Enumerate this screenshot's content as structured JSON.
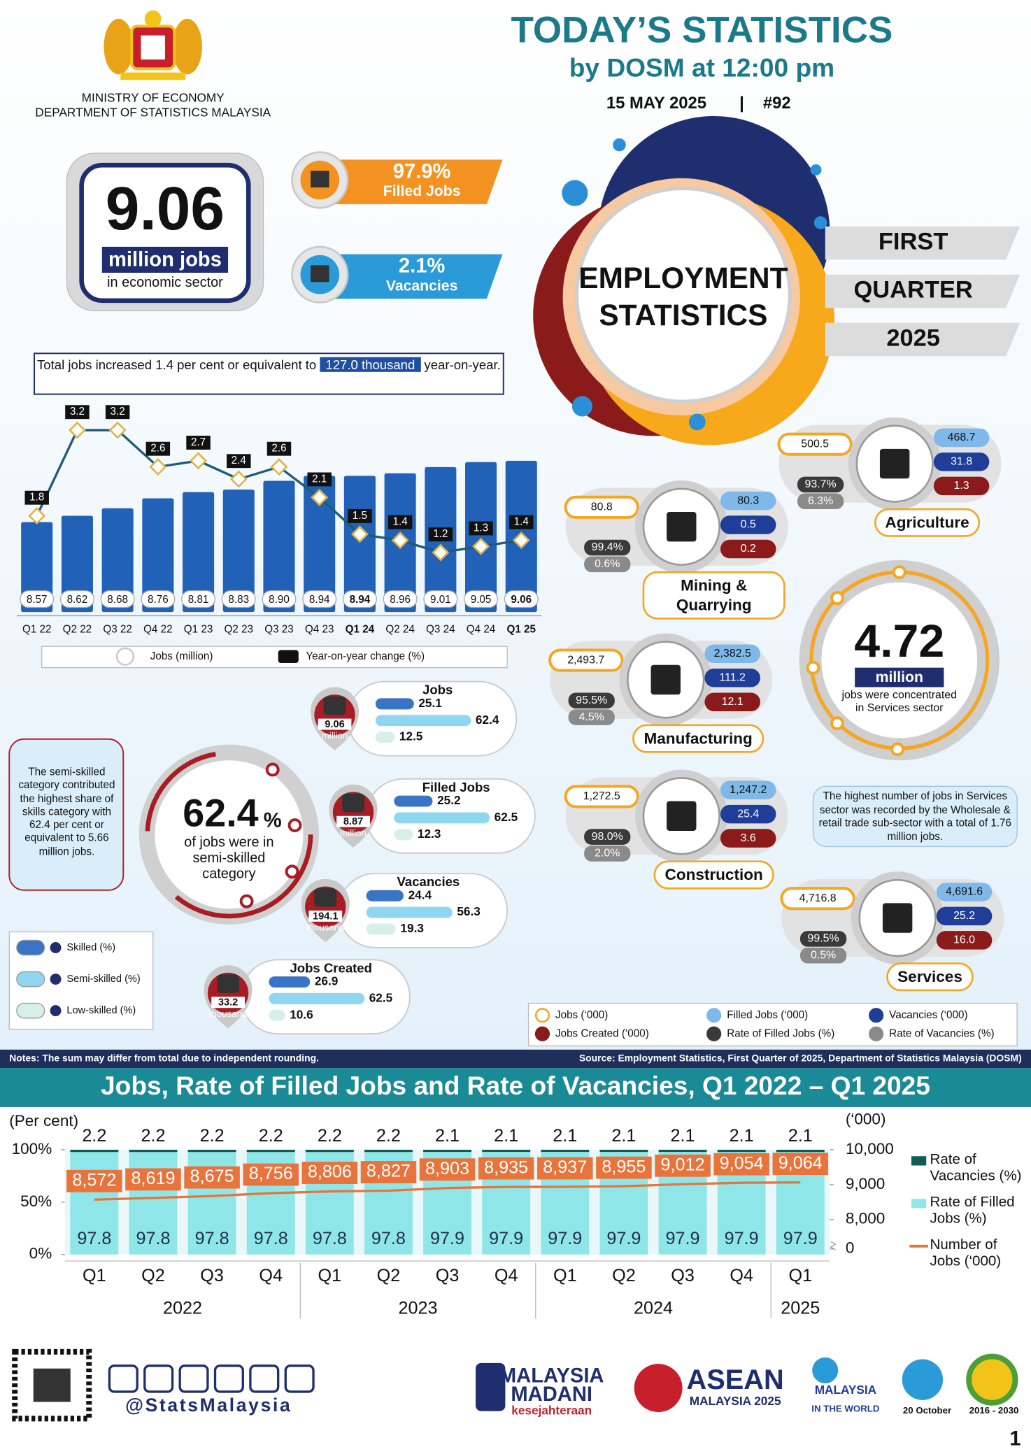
{
  "header": {
    "ministry": "MINISTRY OF ECONOMY",
    "department": "DEPARTMENT OF STATISTICS MALAYSIA",
    "title": "TODAY’S STATISTICS",
    "subtitle": "by DOSM at 12:00 pm",
    "date": "15 MAY 2025",
    "separator": "|",
    "issue": "#92"
  },
  "headline": {
    "value": "9.06",
    "unit": "million jobs",
    "caption": "in economic sector",
    "filled_rate": "97.9%",
    "filled_label": "Filled Jobs",
    "vacancy_rate": "2.1%",
    "vacancy_label": "Vacancies"
  },
  "feature": {
    "title": [
      "EMPLOYMENT",
      "STATISTICS"
    ],
    "period": [
      "FIRST",
      "QUARTER",
      "2025"
    ]
  },
  "summary": {
    "text": "Total jobs increased 1.4 per cent or equivalent to",
    "highlight": "127.0 thousand",
    "end": "year-on-year."
  },
  "chart_data": [
    {
      "type": "bar",
      "categories": [
        "Q1 22",
        "Q2 22",
        "Q3 22",
        "Q4 22",
        "Q1 23",
        "Q2 23",
        "Q3 23",
        "Q4 23",
        "Q1 24",
        "Q2 24",
        "Q3 24",
        "Q4 24",
        "Q1 25"
      ],
      "series": [
        {
          "name": "Jobs (million)",
          "color": "#2161b8",
          "values": [
            8.57,
            8.62,
            8.68,
            8.76,
            8.81,
            8.83,
            8.9,
            8.94,
            8.94,
            8.96,
            9.01,
            9.05,
            9.06
          ],
          "value_labels": [
            "8.57",
            "8.62",
            "8.68",
            "8.76",
            "8.81",
            "8.83",
            "8.90",
            "8.94",
            "8.94",
            "8.96",
            "9.01",
            "9.05",
            "9.06"
          ]
        },
        {
          "name": "Year-on-year change (%)",
          "type": "line",
          "axis": "y2",
          "color": "#1e5a7a",
          "values": [
            1.8,
            3.2,
            3.2,
            2.6,
            2.7,
            2.4,
            2.6,
            2.1,
            1.5,
            1.4,
            1.2,
            1.3,
            1.4
          ]
        }
      ],
      "ylim": [
        7.85,
        9.2
      ],
      "y2lim": [
        0,
        4
      ]
    },
    {
      "type": "bar",
      "stacked": true,
      "title": "Jobs, Rate of Filled Jobs and Rate of Vacancies, Q1 2022 – Q1 2025",
      "categories": [
        "Q1",
        "Q2",
        "Q3",
        "Q4",
        "Q1",
        "Q2",
        "Q3",
        "Q4",
        "Q1",
        "Q2",
        "Q3",
        "Q4",
        "Q1"
      ],
      "category_groups": [
        "2022",
        "2023",
        "2024",
        "2025"
      ],
      "series": [
        {
          "name": "Rate of Filled Jobs (%)",
          "color": "#8fe6e8",
          "values": [
            97.8,
            97.8,
            97.8,
            97.8,
            97.8,
            97.8,
            97.9,
            97.9,
            97.9,
            97.9,
            97.9,
            97.9,
            97.9
          ]
        },
        {
          "name": "Rate of Vacancies (%)",
          "color": "#0f5c52",
          "values": [
            2.2,
            2.2,
            2.2,
            2.2,
            2.2,
            2.2,
            2.1,
            2.1,
            2.1,
            2.1,
            2.1,
            2.1,
            2.1
          ]
        },
        {
          "name": "Number of Jobs (‘000)",
          "type": "line",
          "axis": "y2",
          "color": "#e8743b",
          "values": [
            8572,
            8619,
            8675,
            8756,
            8806,
            8827,
            8903,
            8935,
            8937,
            8955,
            9012,
            9054,
            9064
          ],
          "value_labels": [
            "8,572",
            "8,619",
            "8,675",
            "8,756",
            "8,806",
            "8,827",
            "8,903",
            "8,935",
            "8,937",
            "8,955",
            "9,012",
            "9,054",
            "9,064"
          ]
        }
      ],
      "ylabel": "(Per cent)",
      "y2label": "(‘000)",
      "ylim": [
        0,
        100
      ],
      "yticks": [
        {
          "value": 0,
          "label": "0%"
        },
        {
          "value": 50,
          "label": "50%"
        },
        {
          "value": 100,
          "label": "100%"
        }
      ],
      "y2lim": [
        7000,
        10000
      ],
      "y2ticks": [
        0,
        {
          "value": 8000,
          "label": "8,000"
        },
        {
          "value": 9000,
          "label": "9,000"
        },
        {
          "value": 10000,
          "label": "10,000"
        }
      ]
    }
  ],
  "skills": {
    "note": "The semi-skilled category contributed the highest share of skills category with 62.4 per cent or equivalent to 5.66 million jobs.",
    "share": "62.4",
    "share_unit": "%",
    "share_caption": "of jobs were in semi-skilled category",
    "groups": [
      {
        "title": "Jobs",
        "total": "9.06",
        "unit": "million",
        "values": [
          25.1,
          62.4,
          12.5
        ]
      },
      {
        "title": "Filled Jobs",
        "total": "8.87",
        "unit": "million",
        "values": [
          25.2,
          62.5,
          12.3
        ]
      },
      {
        "title": "Vacancies",
        "total": "194.1",
        "unit": "thousand",
        "values": [
          24.4,
          56.3,
          19.3
        ]
      },
      {
        "title": "Jobs Created",
        "total": "33.2",
        "unit": "thousand",
        "values": [
          26.9,
          62.5,
          10.6
        ]
      }
    ],
    "legend": [
      "Skilled (%)",
      "Semi-skilled (%)",
      "Low-skilled (%)"
    ]
  },
  "sectors": {
    "items": [
      {
        "name": "Agriculture",
        "jobs": "500.5",
        "filled_jobs": "468.7",
        "vacancies": "31.8",
        "jobs_created": "1.3",
        "rate_filled": "93.7%",
        "rate_vacancies": "6.3%"
      },
      {
        "name": "Mining & Quarrying",
        "jobs": "80.8",
        "filled_jobs": "80.3",
        "vacancies": "0.5",
        "jobs_created": "0.2",
        "rate_filled": "99.4%",
        "rate_vacancies": "0.6%"
      },
      {
        "name": "Manufacturing",
        "jobs": "2,493.7",
        "filled_jobs": "2,382.5",
        "vacancies": "111.2",
        "jobs_created": "12.1",
        "rate_filled": "95.5%",
        "rate_vacancies": "4.5%"
      },
      {
        "name": "Construction",
        "jobs": "1,272.5",
        "filled_jobs": "1,247.2",
        "vacancies": "25.4",
        "jobs_created": "3.6",
        "rate_filled": "98.0%",
        "rate_vacancies": "2.0%"
      },
      {
        "name": "Services",
        "jobs": "4,716.8",
        "filled_jobs": "4,691.6",
        "vacancies": "25.2",
        "jobs_created": "16.0",
        "rate_filled": "99.5%",
        "rate_vacancies": "0.5%"
      }
    ],
    "legend": [
      "Jobs (‘000)",
      "Filled Jobs (‘000)",
      "Vacancies (‘000)",
      "Jobs Created (‘000)",
      "Rate of Filled Jobs (%)",
      "Rate of Vacancies (%)"
    ]
  },
  "services": {
    "value": "4.72",
    "unit": "million",
    "caption": "jobs were concentrated in Services sector",
    "note": "The highest number of jobs in Services sector was recorded by the Wholesale & retail trade sub-sector with a total of 1.76 million jobs."
  },
  "notes": "Notes: The sum may differ from total due to independent rounding.",
  "source": "Source: Employment Statistics, First Quarter of 2025, Department of Statistics Malaysia (DOSM)",
  "footer": {
    "handle": "@StatsMalaysia",
    "logos": [
      "MALAYSIA",
      "MADANI",
      "kesejahteraan",
      "ASEAN",
      "MALAYSIA 2025",
      "MALAYSIA",
      "IN THE WORLD",
      "20 October",
      "2016 - 2030"
    ],
    "page": "1"
  }
}
